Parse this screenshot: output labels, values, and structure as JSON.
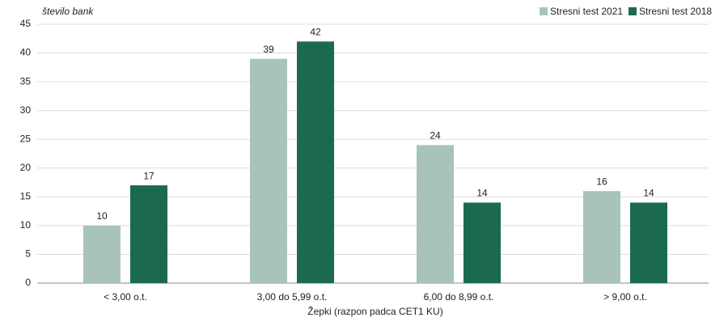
{
  "chart_data": {
    "type": "bar",
    "y_label": "število bank",
    "x_label": "Žepki (razpon padca CET1 KU)",
    "categories": [
      "< 3,00 o.t.",
      "3,00 do 5,99 o.t.",
      "6,00 do 8,99 o.t.",
      "> 9,00 o.t."
    ],
    "series": [
      {
        "name": "Stresni test 2021",
        "color": "#a8c4b8",
        "values": [
          10,
          39,
          24,
          16
        ]
      },
      {
        "name": "Stresni test 2018",
        "color": "#1b6a50",
        "values": [
          17,
          42,
          14,
          14
        ]
      }
    ],
    "ylim": [
      0,
      45
    ],
    "yticks": [
      0,
      5,
      10,
      15,
      20,
      25,
      30,
      35,
      40,
      45
    ],
    "grid": true,
    "legend": "top-right"
  }
}
